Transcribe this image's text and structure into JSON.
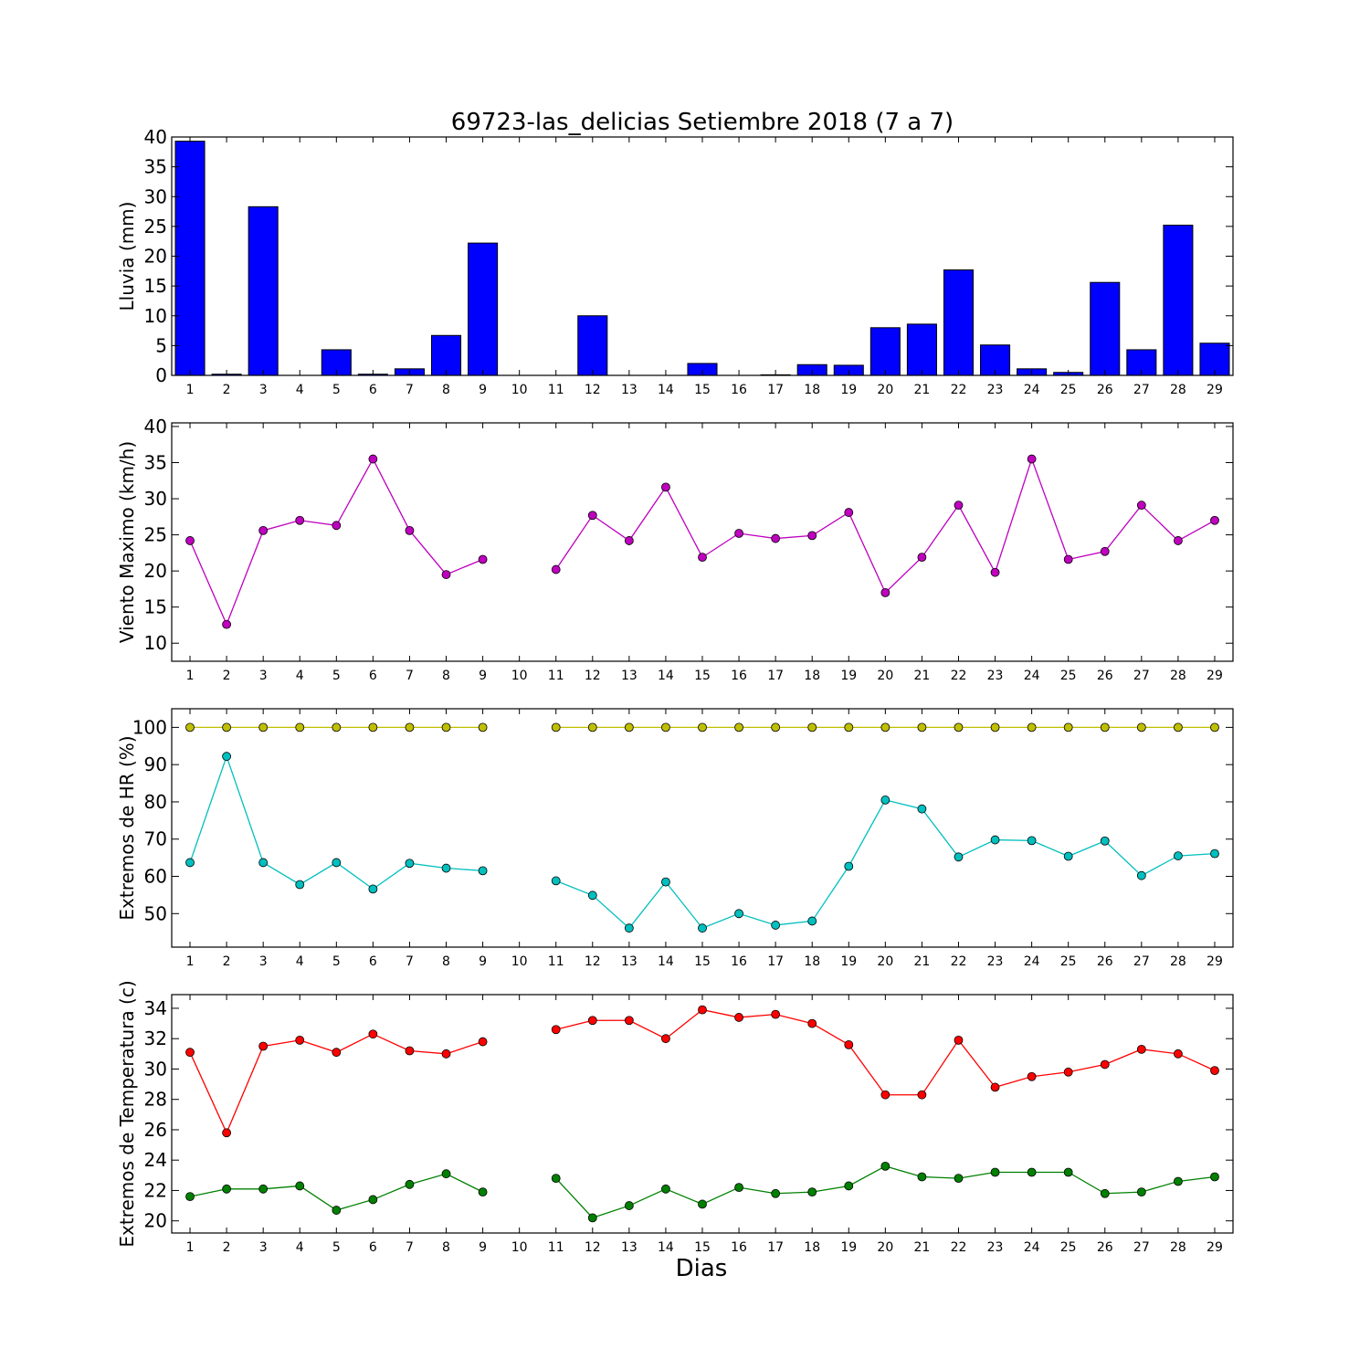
{
  "figure": {
    "title": "69723-las_delicias Setiembre 2018  (7 a 7)",
    "xlabel": "Dias"
  },
  "days": [
    1,
    2,
    3,
    4,
    5,
    6,
    7,
    8,
    9,
    10,
    11,
    12,
    13,
    14,
    15,
    16,
    17,
    18,
    19,
    20,
    21,
    22,
    23,
    24,
    25,
    26,
    27,
    28,
    29
  ],
  "chart_data": [
    {
      "type": "bar",
      "ylabel": "Lluvia (mm)",
      "ylim": [
        0,
        40
      ],
      "yticks": [
        0,
        5,
        10,
        15,
        20,
        25,
        30,
        35,
        40
      ],
      "grid": false,
      "series": [
        {
          "color": "#0000ff",
          "values": [
            39.3,
            0.2,
            28.3,
            0.0,
            4.3,
            0.2,
            1.1,
            6.7,
            22.2,
            0.0,
            0.0,
            10.0,
            0.0,
            0.0,
            2.0,
            0.0,
            0.1,
            1.8,
            1.7,
            8.0,
            8.6,
            17.7,
            5.1,
            1.1,
            0.5,
            15.6,
            4.3,
            25.2,
            5.4
          ]
        }
      ]
    },
    {
      "type": "line",
      "ylabel": "Viento Maximo (km/h)",
      "ylim": [
        7.5,
        40.5
      ],
      "yticks": [
        10,
        15,
        20,
        25,
        30,
        35,
        40
      ],
      "grid": false,
      "series": [
        {
          "color": "#bf00bf",
          "values": [
            24.2,
            12.6,
            25.6,
            27.0,
            26.3,
            35.5,
            25.6,
            19.5,
            21.6,
            null,
            20.2,
            27.7,
            24.2,
            31.6,
            21.9,
            25.2,
            24.5,
            24.9,
            28.1,
            17.0,
            21.9,
            29.1,
            19.8,
            35.5,
            21.6,
            22.7,
            29.1,
            24.2,
            27.0
          ]
        }
      ]
    },
    {
      "type": "line",
      "ylabel": "Extremos de HR (%)",
      "ylim": [
        41,
        105
      ],
      "yticks": [
        50,
        60,
        70,
        80,
        90,
        100
      ],
      "grid": false,
      "series": [
        {
          "color": "#bfbf00",
          "values": [
            100,
            100,
            100,
            100,
            100,
            100,
            100,
            100,
            100,
            null,
            100,
            100,
            100,
            100,
            100,
            100,
            100,
            100,
            100,
            100,
            100,
            100,
            100,
            100,
            100,
            100,
            100,
            100,
            100
          ]
        },
        {
          "color": "#00bfbf",
          "values": [
            63.7,
            92.2,
            63.7,
            57.8,
            63.7,
            56.6,
            63.5,
            62.2,
            61.5,
            null,
            58.8,
            54.9,
            46.1,
            58.5,
            46.1,
            50.0,
            46.9,
            48.0,
            62.7,
            80.5,
            78.1,
            65.2,
            69.8,
            69.6,
            65.4,
            69.5,
            60.2,
            65.5,
            66.1
          ]
        }
      ]
    },
    {
      "type": "line",
      "ylabel": "Extremos de Temperatura (c)",
      "ylim": [
        19.2,
        34.9
      ],
      "yticks": [
        20,
        22,
        24,
        26,
        28,
        30,
        32,
        34
      ],
      "grid": false,
      "series": [
        {
          "color": "#ff0000",
          "values": [
            31.1,
            25.8,
            31.5,
            31.9,
            31.1,
            32.3,
            31.2,
            31.0,
            31.8,
            null,
            32.6,
            33.2,
            33.2,
            32.0,
            33.9,
            33.4,
            33.6,
            33.0,
            31.6,
            28.3,
            28.3,
            31.9,
            28.8,
            29.5,
            29.8,
            30.3,
            31.3,
            31.0,
            29.9
          ]
        },
        {
          "color": "#008000",
          "values": [
            21.6,
            22.1,
            22.1,
            22.3,
            20.7,
            21.4,
            22.4,
            23.1,
            21.9,
            null,
            22.8,
            20.2,
            21.0,
            22.1,
            21.1,
            22.2,
            21.8,
            21.9,
            22.3,
            23.6,
            22.9,
            22.8,
            23.2,
            23.2,
            23.2,
            21.8,
            21.9,
            22.6,
            22.9
          ]
        }
      ]
    }
  ]
}
